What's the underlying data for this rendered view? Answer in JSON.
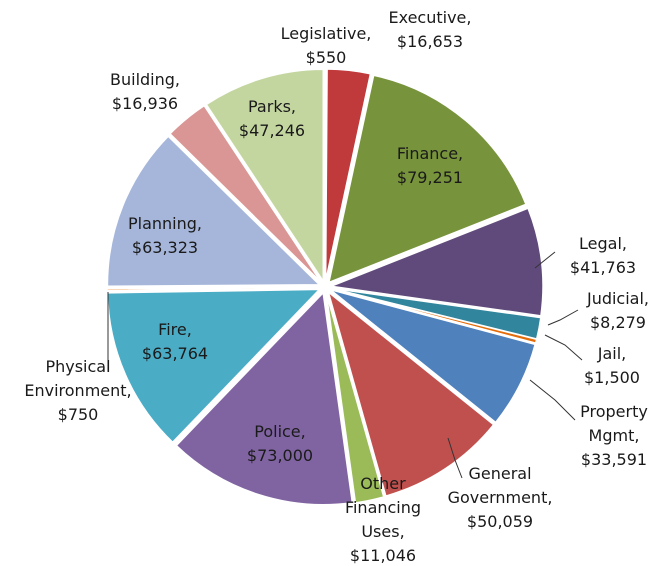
{
  "chart_data": {
    "type": "pie",
    "categories": [
      "Legislative,",
      "Executive,",
      "Finance,",
      "Legal,",
      "Judicial,",
      "Jail,",
      "Property Mgmt,",
      "General Government,",
      "Other Financing Uses,",
      "Police,",
      "Fire,",
      "Physical Environment,",
      "Planning,",
      "Building,",
      "Parks,"
    ],
    "values": [
      550,
      16653,
      79251,
      41763,
      8279,
      1500,
      33591,
      50059,
      11046,
      73000,
      63764,
      750,
      63323,
      16936,
      47246
    ],
    "value_labels": [
      "$550",
      "$16,653",
      "$79,251",
      "$41,763",
      "$8,279",
      "$1,500",
      "$33,591",
      "$50,059",
      "$11,046",
      "$73,000",
      "$63,764",
      "$750",
      "$63,323",
      "$16,936",
      "$47,246"
    ],
    "colors": [
      "#a6a6a6",
      "#c0393b",
      "#77933c",
      "#604a7b",
      "#31859c",
      "#e46c0a",
      "#4f81bd",
      "#c0504d",
      "#9bbb59",
      "#8064a2",
      "#4bacc6",
      "#f79646",
      "#a5b6da",
      "#d99694",
      "#c4d6a0"
    ]
  }
}
